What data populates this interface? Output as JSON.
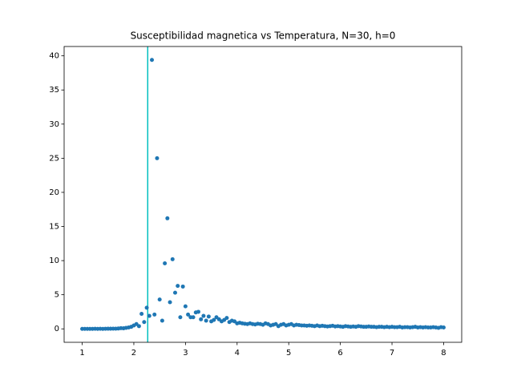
{
  "chart_data": {
    "type": "scatter",
    "title": "Susceptibilidad magnetica vs Temperatura, N=30, h=0",
    "x": [
      1,
      1.05,
      1.1,
      1.15,
      1.2,
      1.25,
      1.3,
      1.35,
      1.4,
      1.45,
      1.5,
      1.55,
      1.6,
      1.65,
      1.7,
      1.75,
      1.8,
      1.85,
      1.9,
      1.95,
      2,
      2.05,
      2.1,
      2.15,
      2.2,
      2.25,
      2.3,
      2.35,
      2.4,
      2.45,
      2.5,
      2.55,
      2.6,
      2.65,
      2.7,
      2.75,
      2.8,
      2.85,
      2.9,
      2.95,
      3,
      3.05,
      3.1,
      3.15,
      3.2,
      3.25,
      3.3,
      3.35,
      3.4,
      3.45,
      3.5,
      3.55,
      3.6,
      3.65,
      3.7,
      3.75,
      3.8,
      3.85,
      3.9,
      3.95,
      4,
      4.05,
      4.1,
      4.15,
      4.2,
      4.25,
      4.3,
      4.35,
      4.4,
      4.45,
      4.5,
      4.55,
      4.6,
      4.65,
      4.7,
      4.75,
      4.8,
      4.85,
      4.9,
      4.95,
      5,
      5.05,
      5.1,
      5.15,
      5.2,
      5.25,
      5.3,
      5.35,
      5.4,
      5.45,
      5.5,
      5.55,
      5.6,
      5.65,
      5.7,
      5.75,
      5.8,
      5.85,
      5.9,
      5.95,
      6,
      6.05,
      6.1,
      6.15,
      6.2,
      6.25,
      6.3,
      6.35,
      6.4,
      6.45,
      6.5,
      6.55,
      6.6,
      6.65,
      6.7,
      6.75,
      6.8,
      6.85,
      6.9,
      6.95,
      7,
      7.05,
      7.1,
      7.15,
      7.2,
      7.25,
      7.3,
      7.35,
      7.4,
      7.45,
      7.5,
      7.55,
      7.6,
      7.65,
      7.7,
      7.75,
      7.8,
      7.85,
      7.9,
      7.95,
      8
    ],
    "values": [
      0,
      0,
      0,
      0,
      0,
      0.01,
      0,
      0.01,
      0,
      0.01,
      0.02,
      0.02,
      0.03,
      0.03,
      0.05,
      0.1,
      0.08,
      0.15,
      0.2,
      0.3,
      0.5,
      0.7,
      0.4,
      2.2,
      1.0,
      3.1,
      1.9,
      39.4,
      2.1,
      25.0,
      4.3,
      1.2,
      9.6,
      16.2,
      3.9,
      10.2,
      5.3,
      6.3,
      1.7,
      6.2,
      3.3,
      2.1,
      1.7,
      1.7,
      2.4,
      2.5,
      1.4,
      1.9,
      1.2,
      1.8,
      1.1,
      1.3,
      1.7,
      1.4,
      1.1,
      1.3,
      1.6,
      1.0,
      1.2,
      1.1,
      0.8,
      0.9,
      0.8,
      0.75,
      0.7,
      0.8,
      0.7,
      0.65,
      0.75,
      0.7,
      0.6,
      0.8,
      0.7,
      0.5,
      0.6,
      0.7,
      0.4,
      0.6,
      0.7,
      0.5,
      0.6,
      0.7,
      0.5,
      0.6,
      0.55,
      0.5,
      0.5,
      0.45,
      0.5,
      0.45,
      0.4,
      0.5,
      0.4,
      0.45,
      0.4,
      0.35,
      0.4,
      0.45,
      0.35,
      0.4,
      0.35,
      0.3,
      0.4,
      0.35,
      0.3,
      0.35,
      0.3,
      0.4,
      0.35,
      0.3,
      0.3,
      0.35,
      0.3,
      0.3,
      0.25,
      0.3,
      0.3,
      0.25,
      0.3,
      0.25,
      0.3,
      0.25,
      0.25,
      0.3,
      0.2,
      0.25,
      0.25,
      0.2,
      0.25,
      0.3,
      0.2,
      0.25,
      0.2,
      0.25,
      0.2,
      0.2,
      0.25,
      0.2,
      0.15,
      0.25,
      0.2
    ],
    "color": "#1f77b4",
    "vline": 2.269,
    "vline_color": "#00bfbf",
    "xlim": [
      0.65,
      8.35
    ],
    "xticks": [
      1,
      2,
      3,
      4,
      5,
      6,
      7,
      8
    ],
    "ylim": [
      -1.97,
      41.37
    ],
    "yticks": [
      0,
      5,
      10,
      15,
      20,
      25,
      30,
      35,
      40
    ]
  }
}
